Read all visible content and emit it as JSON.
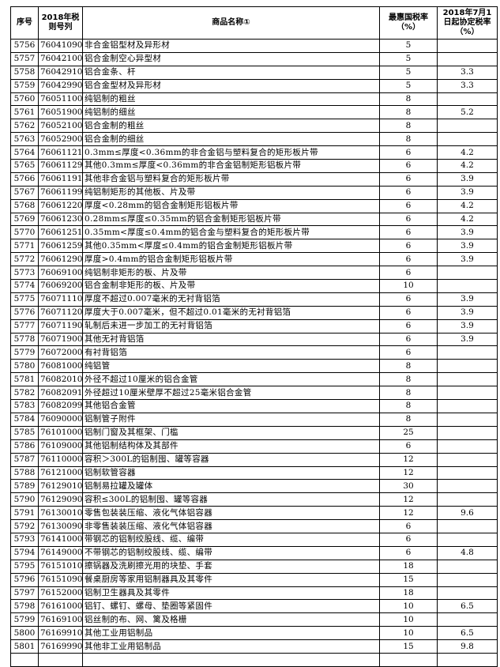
{
  "table": {
    "headers": [
      "序号",
      "2018年税则号列",
      "商品名称①",
      "最惠国税率（%）",
      "2018年7月1日起协定税率（%）"
    ],
    "rows": [
      [
        "5756",
        "76041090",
        "非合金铝型材及异形材",
        "5",
        ""
      ],
      [
        "5757",
        "76042100",
        "铝合金制空心异型材",
        "5",
        ""
      ],
      [
        "5758",
        "76042910",
        "铝合金条、杆",
        "5",
        "3.3"
      ],
      [
        "5759",
        "76042990",
        "铝合金型材及异形材",
        "5",
        "3.3"
      ],
      [
        "5760",
        "76051100",
        "纯铝制的粗丝",
        "8",
        ""
      ],
      [
        "5761",
        "76051900",
        "纯铝制的细丝",
        "8",
        "5.2"
      ],
      [
        "5762",
        "76052100",
        "铝合金制的粗丝",
        "8",
        ""
      ],
      [
        "5763",
        "76052900",
        "铝合金制的细丝",
        "8",
        ""
      ],
      [
        "5764",
        "76061121",
        "0.3mm≤厚度<0.36mm的非合金铝与塑料复合的矩形板片带",
        "6",
        "4.2"
      ],
      [
        "5765",
        "76061129",
        "其他0.3mm≤厚度<0.36mm的非合金铝制矩形铝板片带",
        "6",
        "4.2"
      ],
      [
        "5766",
        "76061191",
        "其他非合金铝与塑料复合的矩形板片带",
        "6",
        "3.9"
      ],
      [
        "5767",
        "76061199",
        "纯铝制矩形的其他板、片及带",
        "6",
        "3.9"
      ],
      [
        "5768",
        "76061220",
        "厚度<0.28mm的铝合金制矩形铝板片带",
        "6",
        "4.2"
      ],
      [
        "5769",
        "76061230",
        "0.28mm≤厚度≤0.35mm的铝合金制矩形铝板片带",
        "6",
        "4.2"
      ],
      [
        "5770",
        "76061251",
        "0.35mm<厚度≤0.4mm的铝合金与塑料复合的矩形板片带",
        "6",
        "3.9"
      ],
      [
        "5771",
        "76061259",
        "其他0.35mm<厚度≤0.4mm的铝合金制矩形铝板片带",
        "6",
        "3.9"
      ],
      [
        "5772",
        "76061290",
        "厚度>0.4mm的铝合金制矩形铝板片带",
        "6",
        "3.9"
      ],
      [
        "5773",
        "76069100",
        "纯铝制非矩形的板、片及带",
        "6",
        ""
      ],
      [
        "5774",
        "76069200",
        "铝合金制非矩形的板、片及带",
        "10",
        ""
      ],
      [
        "5775",
        "76071110",
        "厚度不超过0.007毫米的无衬背铝箔",
        "6",
        "3.9"
      ],
      [
        "5776",
        "76071120",
        "厚度大于0.007毫米，但不超过0.01毫米的无衬背铝箔",
        "6",
        "3.9"
      ],
      [
        "5777",
        "76071190",
        "轧制后未进一步加工的无衬背铝箔",
        "6",
        "3.9"
      ],
      [
        "5778",
        "76071900",
        "其他无衬背铝箔",
        "6",
        "3.9"
      ],
      [
        "5779",
        "76072000",
        "有衬背铝箔",
        "6",
        ""
      ],
      [
        "5780",
        "76081000",
        "纯铝管",
        "8",
        ""
      ],
      [
        "5781",
        "76082010",
        "外径不超过10厘米的铝合金管",
        "8",
        ""
      ],
      [
        "5782",
        "76082091",
        "外径超过10厘米壁厚不超过25毫米铝合金管",
        "8",
        ""
      ],
      [
        "5783",
        "76082099",
        "其他铝合金管",
        "8",
        ""
      ],
      [
        "5784",
        "76090000",
        "铝制管子附件",
        "8",
        ""
      ],
      [
        "5785",
        "76101000",
        "铝制门窗及其框架、门槛",
        "25",
        ""
      ],
      [
        "5786",
        "76109000",
        "其他铝制结构体及其部件",
        "6",
        ""
      ],
      [
        "5787",
        "76110000",
        "容积＞300L的铝制囤、罐等容器",
        "12",
        ""
      ],
      [
        "5788",
        "76121000",
        "铝制软管容器",
        "12",
        ""
      ],
      [
        "5789",
        "76129010",
        "铝制易拉罐及罐体",
        "30",
        ""
      ],
      [
        "5790",
        "76129090",
        "容积≤300L的铝制囤、罐等容器",
        "12",
        ""
      ],
      [
        "5791",
        "76130010",
        "零售包装装压缩、液化气体铝容器",
        "12",
        "9.6"
      ],
      [
        "5792",
        "76130090",
        "非零售装装压缩、液化气体铝容器",
        "6",
        ""
      ],
      [
        "5793",
        "76141000",
        "带钢芯的铝制绞股线、缆、编带",
        "6",
        ""
      ],
      [
        "5794",
        "76149000",
        "不带钢芯的铝制绞股线、缆、编带",
        "6",
        "4.8"
      ],
      [
        "5795",
        "76151010",
        "擦锅器及洗刷擦光用的块垫、手套",
        "18",
        ""
      ],
      [
        "5796",
        "76151090",
        "餐桌厨房等家用铝制器具及其零件",
        "15",
        ""
      ],
      [
        "5797",
        "76152000",
        "铝制卫生器具及其零件",
        "18",
        ""
      ],
      [
        "5798",
        "76161000",
        "铝钉、螺钉、螺母、垫圈等紧固件",
        "10",
        "6.5"
      ],
      [
        "5799",
        "76169100",
        "铝丝制的布、网、篱及格栅",
        "10",
        ""
      ],
      [
        "5800",
        "76169910",
        "其他工业用铝制品",
        "10",
        "6.5"
      ],
      [
        "5801",
        "76169990",
        "其他非工业用铝制品",
        "15",
        "9.8"
      ]
    ]
  }
}
